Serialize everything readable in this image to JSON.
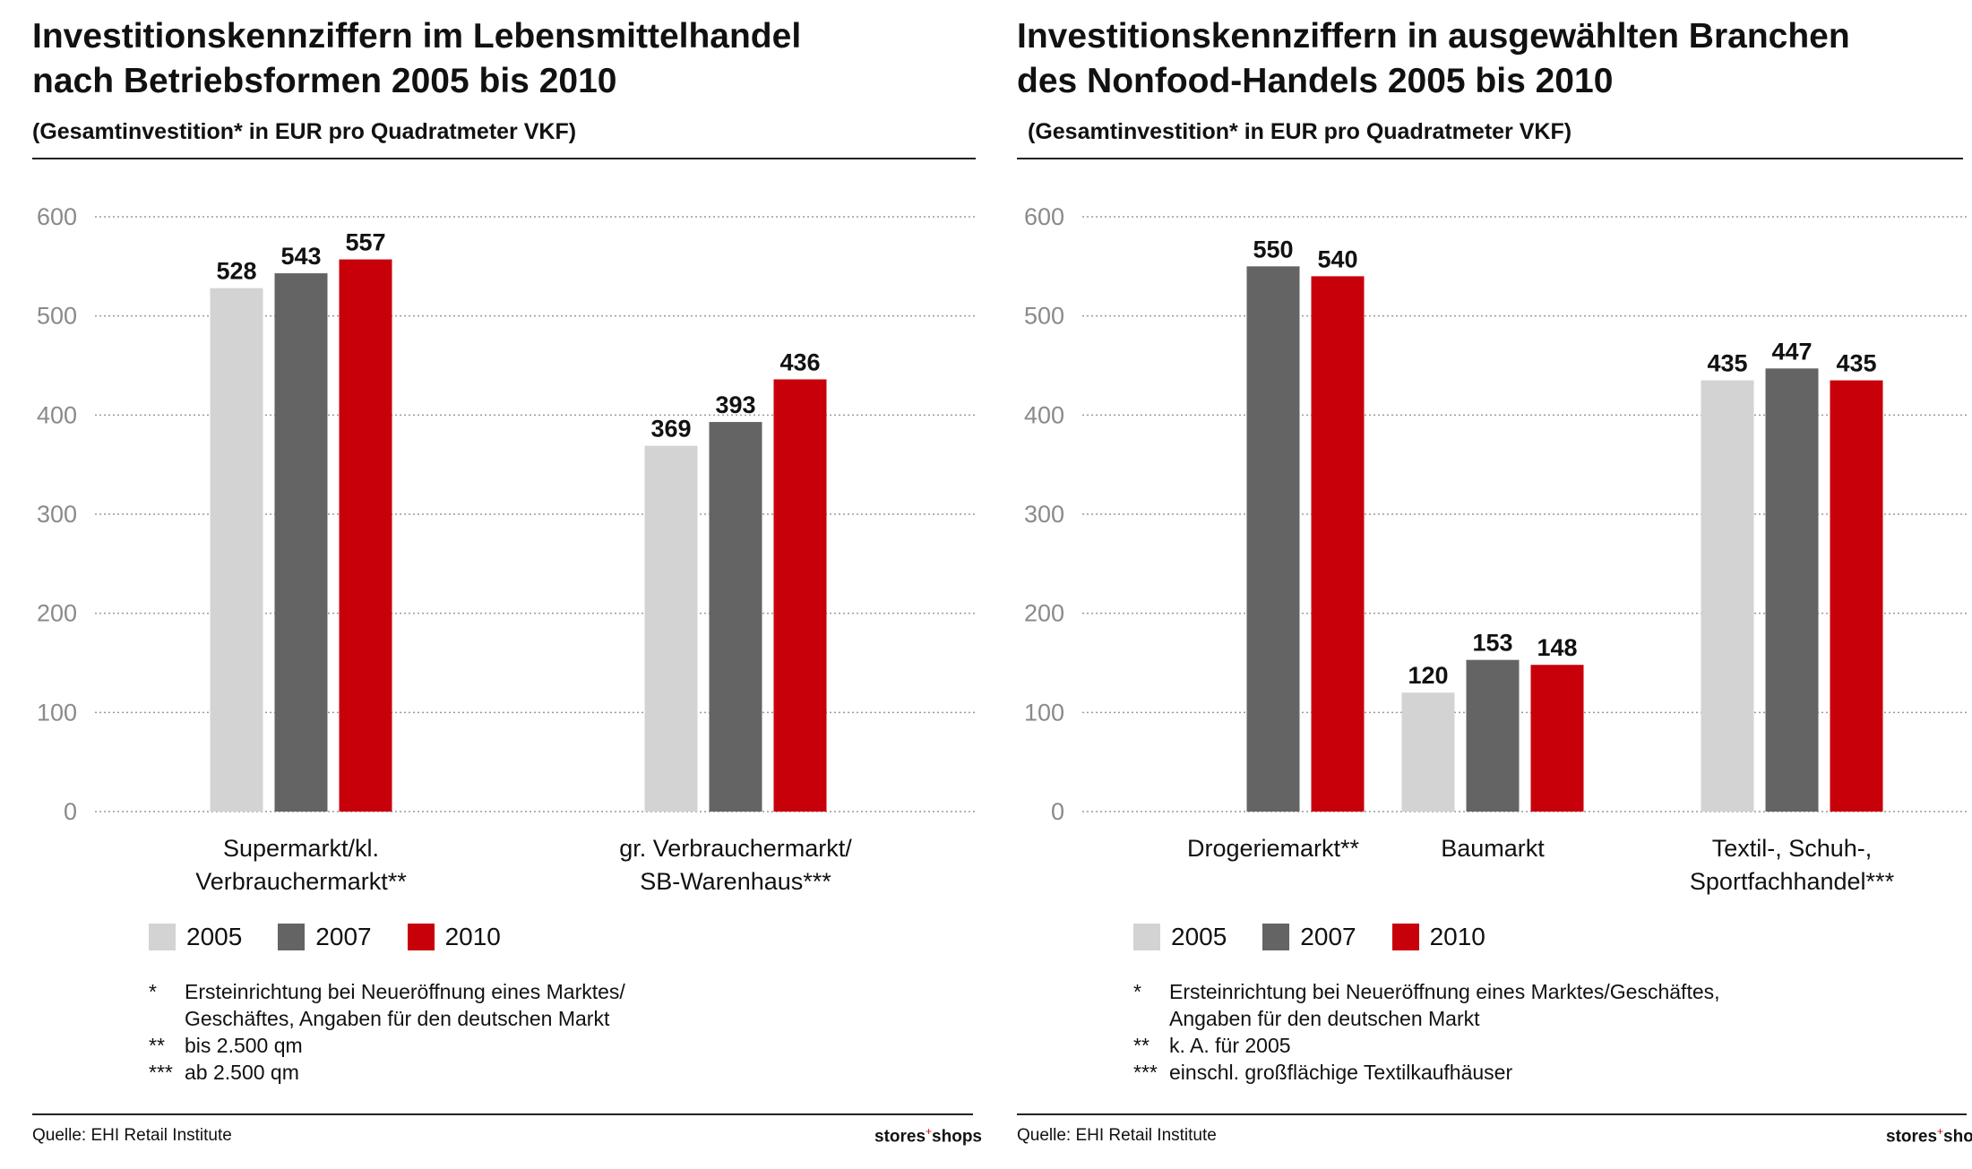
{
  "panels": [
    {
      "title_lines": [
        "Investitionskennziffern im Lebensmittelhandel",
        "nach Betriebsformen 2005 bis 2010"
      ],
      "subtitle": "(Gesamtinvestition* in EUR pro Quadratmeter VKF)",
      "legend": [
        {
          "label": "2005",
          "color": "#d3d3d3"
        },
        {
          "label": "2007",
          "color": "#646464"
        },
        {
          "label": "2010",
          "color": "#c8000a"
        }
      ],
      "notes": [
        {
          "mark": "*",
          "lines": [
            "Ersteinrichtung bei Neueröffnung eines Marktes/",
            "Geschäftes, Angaben für den deutschen Markt"
          ]
        },
        {
          "mark": "**",
          "lines": [
            "bis 2.500 qm"
          ]
        },
        {
          "mark": "***",
          "lines": [
            "ab 2.500 qm"
          ]
        }
      ],
      "source": "Quelle: EHI Retail Institute",
      "brand": {
        "main": "stores",
        "sup": "+",
        "end": "shops"
      }
    },
    {
      "title_lines": [
        "Investitionskennziffern in ausgewählten Branchen",
        "des Nonfood-Handels 2005 bis 2010"
      ],
      "subtitle": "(Gesamtinvestition* in EUR pro Quadratmeter VKF)",
      "legend": [
        {
          "label": "2005",
          "color": "#d3d3d3"
        },
        {
          "label": "2007",
          "color": "#646464"
        },
        {
          "label": "2010",
          "color": "#c8000a"
        }
      ],
      "notes": [
        {
          "mark": "*",
          "lines": [
            "Ersteinrichtung bei Neueröffnung eines Marktes/Geschäftes,",
            "Angaben für den deutschen Markt"
          ]
        },
        {
          "mark": "**",
          "lines": [
            "k. A. für 2005"
          ]
        },
        {
          "mark": "***",
          "lines": [
            "einschl. großflächige Textilkaufhäuser"
          ]
        }
      ],
      "source": "Quelle: EHI Retail Institute",
      "brand": {
        "main": "stores",
        "sup": "+",
        "end": "shops"
      }
    }
  ],
  "chart_data": [
    {
      "type": "bar",
      "title": "Investitionskennziffern im Lebensmittelhandel nach Betriebsformen 2005 bis 2010",
      "subtitle": "(Gesamtinvestition* in EUR pro Quadratmeter VKF)",
      "categories": [
        [
          "Supermarkt/kl.",
          "Verbrauchermarkt**"
        ],
        [
          "gr. Verbrauchermarkt/",
          "SB-Warenhaus***"
        ]
      ],
      "series": [
        {
          "name": "2005",
          "color": "#d3d3d3",
          "values": [
            528,
            369
          ]
        },
        {
          "name": "2007",
          "color": "#646464",
          "values": [
            543,
            393
          ]
        },
        {
          "name": "2010",
          "color": "#c8000a",
          "values": [
            557,
            436
          ]
        }
      ],
      "data_labels": [
        [
          "528",
          "369"
        ],
        [
          "543",
          "393"
        ],
        [
          "557",
          "436"
        ]
      ],
      "ylim": [
        0,
        600
      ],
      "yticks": [
        0,
        100,
        200,
        300,
        400,
        500,
        600
      ],
      "grid": true,
      "legend_position": "bottom-left"
    },
    {
      "type": "bar",
      "title": "Investitionskennziffern in ausgewählten Branchen des Nonfood-Handels 2005 bis 2010",
      "subtitle": "(Gesamtinvestition* in EUR pro Quadratmeter VKF)",
      "categories": [
        [
          "Drogeriemarkt**"
        ],
        [
          "Baumarkt"
        ],
        [
          "Textil-, Schuh-,",
          "Sportfachhandel***"
        ]
      ],
      "series": [
        {
          "name": "2005",
          "color": "#d3d3d3",
          "values": [
            null,
            120,
            435
          ]
        },
        {
          "name": "2007",
          "color": "#646464",
          "values": [
            550,
            153,
            447
          ]
        },
        {
          "name": "2010",
          "color": "#c8000a",
          "values": [
            540,
            148,
            435
          ]
        }
      ],
      "data_labels": [
        [
          null,
          "120",
          "435"
        ],
        [
          "550",
          "153",
          "447"
        ],
        [
          "540",
          "148",
          "435"
        ]
      ],
      "ylim": [
        0,
        600
      ],
      "yticks": [
        0,
        100,
        200,
        300,
        400,
        500,
        600
      ],
      "grid": true,
      "legend_position": "bottom-left"
    }
  ]
}
